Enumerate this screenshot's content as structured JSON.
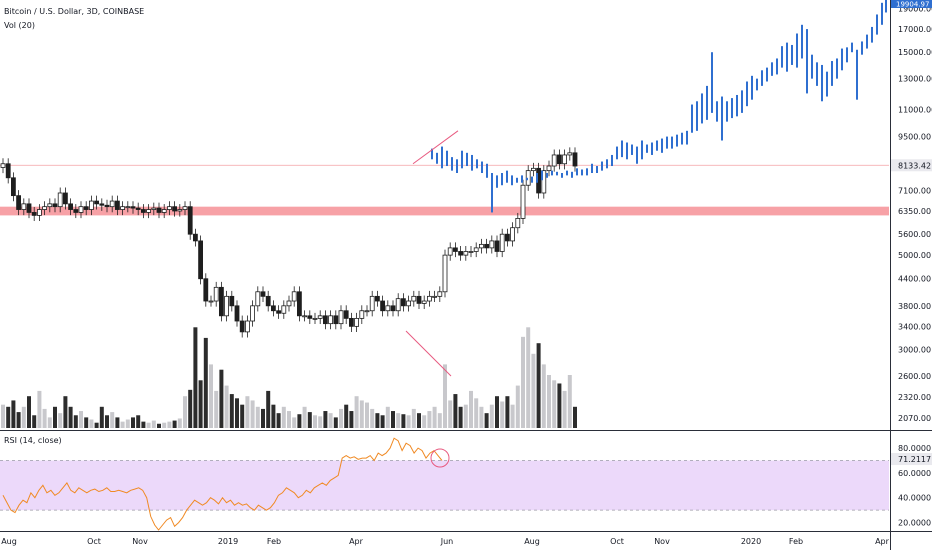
{
  "legend": {
    "symbol": "Bitcoin / U.S. Dollar, 3D, COINBASE",
    "volume": "Vol (20)",
    "rsi": "RSI (14, close)"
  },
  "colors": {
    "up_candle": "#ffffff",
    "down_candle": "#1e1e1e",
    "projection": "#2f6fd0",
    "resistance_band": "#f7a1a6",
    "rsi_line": "#f08a24",
    "rsi_band": "#ecd9fa",
    "trendline": "#e85a80",
    "vol_up": "#c8c8cc",
    "vol_down": "#2c2c2c"
  },
  "chart_data": [
    {
      "type": "candlestick",
      "log_scale": true,
      "ylim": [
        1940,
        19900
      ],
      "price_ticks": [
        "19000.00",
        "17000.00",
        "15000.00",
        "13000.00",
        "11000.00",
        "9500.00",
        "8133.42",
        "7100.00",
        "6350.00",
        "5600.00",
        "5000.00",
        "4400.00",
        "3800.00",
        "3400.00",
        "3000.00",
        "2600.00",
        "2320.00",
        "2070.00"
      ],
      "last_price_label": "8133.42",
      "top_price_label": "19904.97",
      "time_labels": [
        "Aug",
        "Oct",
        "Nov",
        "2019",
        "Feb",
        "Apr",
        "Jun",
        "Aug",
        "Oct",
        "Nov",
        "2020",
        "Feb",
        "Apr"
      ],
      "resistance_zone": [
        6200,
        6500
      ],
      "current_price_line": 8133.42,
      "candles_close": [
        8200,
        7600,
        6900,
        6400,
        6600,
        6300,
        6200,
        6400,
        6500,
        6600,
        6500,
        7000,
        6600,
        6400,
        6300,
        6500,
        6400,
        6700,
        6600,
        6550,
        6500,
        6700,
        6400,
        6500,
        6500,
        6450,
        6400,
        6300,
        6400,
        6450,
        6300,
        6400,
        6500,
        6350,
        6400,
        6500,
        5600,
        5400,
        4400,
        3900,
        3900,
        4200,
        3600,
        4000,
        3800,
        3500,
        3300,
        3500,
        3800,
        4100,
        4000,
        3800,
        3700,
        3650,
        3800,
        3900,
        4100,
        3600,
        3600,
        3550,
        3550,
        3600,
        3450,
        3600,
        3450,
        3700,
        3550,
        3400,
        3550,
        3700,
        3700,
        4000,
        3900,
        3700,
        3800,
        3700,
        3950,
        3800,
        3900,
        4000,
        3850,
        3900,
        4000,
        4000,
        4100,
        5000,
        5200,
        5100,
        5000,
        5100,
        5100,
        5200,
        5300,
        5200,
        5400,
        5100,
        5600,
        5400,
        5800,
        6100,
        7300,
        7900,
        8000,
        7000,
        7900,
        8100,
        8600,
        8200,
        8600,
        8700,
        8100
      ],
      "projection_points": [
        {
          "x": "Jun",
          "y": 8600
        },
        {
          "x": "Jun",
          "y": 6400
        },
        {
          "x": "Aug",
          "y": 7500
        },
        {
          "x": "Oct",
          "y": 8500
        },
        {
          "x": "Nov",
          "y": 9900
        },
        {
          "x": "Nov",
          "y": 15000
        },
        {
          "x": "2020",
          "y": 11800
        },
        {
          "x": "Feb",
          "y": 17000
        },
        {
          "x": "Feb",
          "y": 11500
        },
        {
          "x": "Apr",
          "y": 19900
        }
      ],
      "trendline": [
        {
          "x": "May",
          "y": 8200
        },
        {
          "x": "Jun",
          "y": 9800
        }
      ]
    },
    {
      "type": "bar",
      "series": [
        {
          "values": [
            0.22,
            0.2,
            0.26,
            0.15,
            0.2,
            0.3,
            0.12,
            0.35,
            0.18,
            0.1,
            0.2,
            0.14,
            0.3,
            0.2,
            0.12,
            0.16,
            0.1,
            0.08,
            0.05,
            0.2,
            0.12,
            0.15,
            0.1,
            0.06,
            0.08,
            0.1,
            0.12,
            0.06,
            0.05,
            0.07,
            0.04,
            0.05,
            0.06,
            0.07,
            0.09,
            0.3,
            0.36,
            0.95,
            0.45,
            0.85,
            0.6,
            0.35,
            0.55,
            0.4,
            0.32,
            0.28,
            0.22,
            0.3,
            0.26,
            0.2,
            0.18,
            0.35,
            0.22,
            0.14,
            0.2,
            0.16,
            0.1,
            0.13,
            0.2,
            0.15,
            0.12,
            0.11,
            0.16,
            0.14,
            0.1,
            0.18,
            0.22,
            0.16,
            0.3,
            0.26,
            0.24,
            0.18,
            0.14,
            0.12,
            0.2,
            0.16,
            0.14,
            0.13,
            0.12,
            0.18,
            0.14,
            0.12,
            0.16,
            0.2,
            0.14,
            0.6,
            0.26,
            0.32,
            0.2,
            0.22,
            0.35,
            0.28,
            0.2,
            0.14,
            0.22,
            0.3,
            0.25,
            0.3,
            0.22,
            0.4,
            0.86,
            0.95,
            0.7,
            0.8,
            0.6,
            0.5,
            0.45,
            0.42,
            0.35,
            0.5,
            0.2
          ]
        }
      ]
    },
    {
      "type": "line",
      "name": "RSI (14, close)",
      "ylim": [
        14,
        93
      ],
      "y_ticks": [
        "80.0000",
        "71.2117",
        "60.0000",
        "40.0000",
        "20.0000"
      ],
      "levels": [
        70,
        30
      ],
      "last_value": 71.2117,
      "values": [
        42,
        36,
        30,
        28,
        34,
        38,
        36,
        44,
        40,
        46,
        50,
        44,
        46,
        42,
        44,
        48,
        52,
        46,
        44,
        48,
        46,
        44,
        46,
        47,
        45,
        46,
        48,
        45,
        45,
        46,
        45,
        44,
        46,
        47,
        48,
        46,
        40,
        25,
        18,
        14,
        18,
        22,
        24,
        17,
        20,
        24,
        30,
        34,
        38,
        36,
        34,
        36,
        40,
        38,
        35,
        40,
        36,
        38,
        34,
        36,
        34,
        35,
        32,
        30,
        34,
        32,
        30,
        32,
        36,
        42,
        44,
        48,
        46,
        44,
        40,
        42,
        46,
        44,
        48,
        50,
        52,
        50,
        54,
        56,
        58,
        72,
        74,
        72,
        73,
        71,
        72,
        72,
        74,
        70,
        76,
        74,
        76,
        80,
        88,
        86,
        78,
        84,
        82,
        76,
        80,
        78,
        72,
        76,
        78,
        74,
        70
      ]
    }
  ]
}
